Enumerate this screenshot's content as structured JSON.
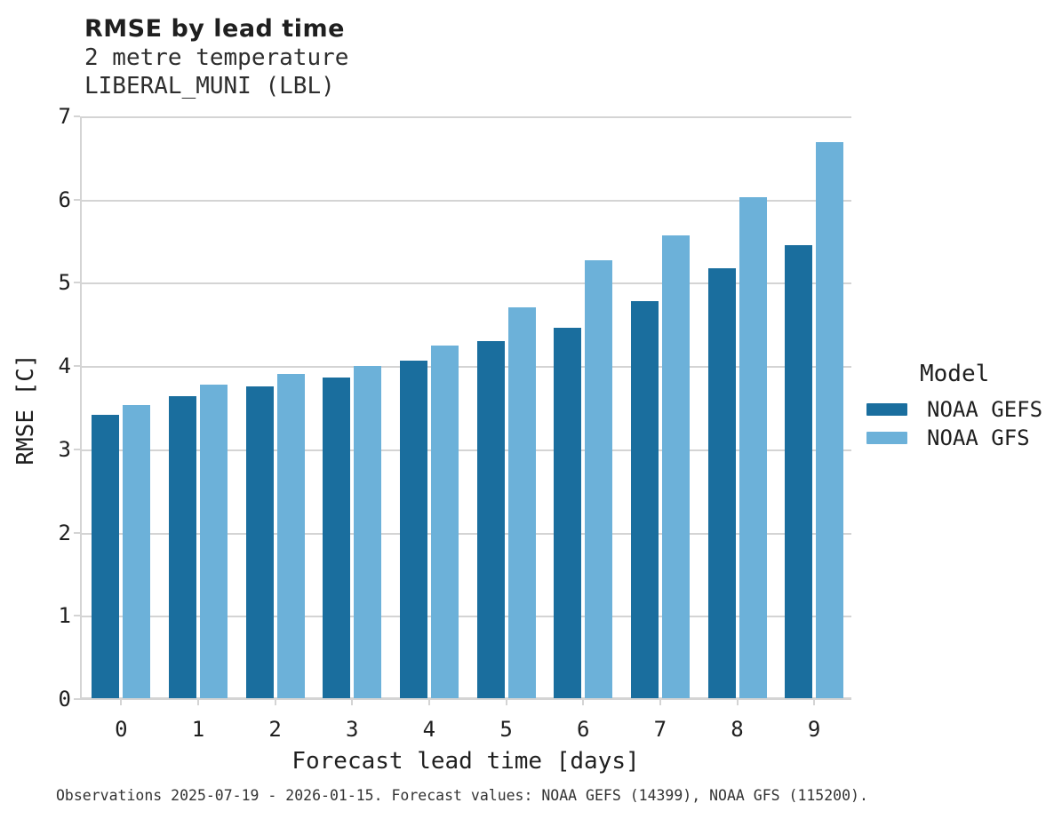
{
  "header": {
    "title": "RMSE by lead time",
    "subtitle_line1": "2 metre temperature",
    "subtitle_line2": "LIBERAL_MUNI (LBL)"
  },
  "legend": {
    "title": "Model",
    "items": [
      {
        "label": "NOAA GEFS",
        "color": "#1a6e9e"
      },
      {
        "label": "NOAA GFS",
        "color": "#6cb1d9"
      }
    ]
  },
  "caption": "Observations 2025-07-19 - 2026-01-15. Forecast values: NOAA GEFS (14399), NOAA GFS (115200).",
  "colors": {
    "series_dark": "#1a6e9e",
    "series_light": "#6cb1d9",
    "gridline": "#d4d4d4",
    "text": "#1f1f1f"
  },
  "chart_data": {
    "type": "bar",
    "title": "RMSE by lead time",
    "subtitle": [
      "2 metre temperature",
      "LIBERAL_MUNI (LBL)"
    ],
    "xlabel": "Forecast lead time [days]",
    "ylabel": "RMSE [C]",
    "categories": [
      0,
      1,
      2,
      3,
      4,
      5,
      6,
      7,
      8,
      9
    ],
    "series": [
      {
        "name": "NOAA GEFS",
        "color": "#1a6e9e",
        "values": [
          3.4,
          3.63,
          3.75,
          3.85,
          4.05,
          4.29,
          4.45,
          4.77,
          5.17,
          5.44
        ]
      },
      {
        "name": "NOAA GFS",
        "color": "#6cb1d9",
        "values": [
          3.52,
          3.77,
          3.9,
          3.99,
          4.24,
          4.7,
          5.26,
          5.56,
          6.02,
          6.68
        ]
      }
    ],
    "ylim": [
      0,
      7
    ],
    "yticks": [
      0,
      1,
      2,
      3,
      4,
      5,
      6,
      7
    ],
    "grid": true,
    "legend_title": "Model",
    "legend_position": "right"
  }
}
